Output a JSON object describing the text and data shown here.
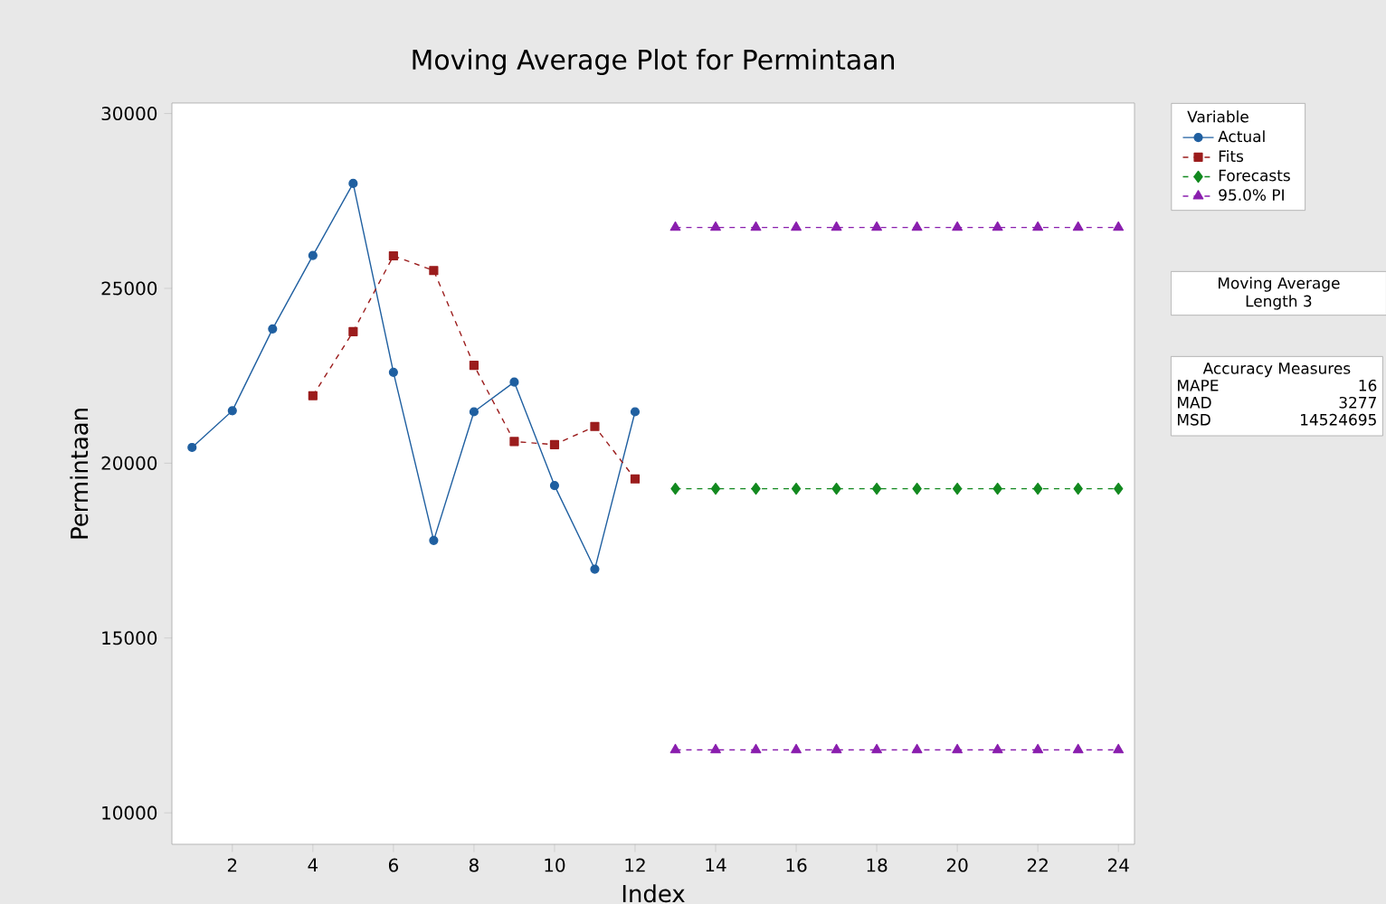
{
  "chart_data": {
    "type": "line",
    "title": "Moving Average Plot for Permintaan",
    "xlabel": "Index",
    "ylabel": "Permintaan",
    "legend_title": "Variable",
    "legend": "right",
    "grid": false,
    "xlim": [
      0.5,
      24.4
    ],
    "ylim": [
      9100,
      30300
    ],
    "xticks": [
      2,
      4,
      6,
      8,
      10,
      12,
      14,
      16,
      18,
      20,
      22,
      24
    ],
    "yticks": [
      10000,
      15000,
      20000,
      25000,
      30000
    ],
    "series": [
      {
        "name": "Actual",
        "color": "#1f5fa0",
        "marker": "circle",
        "line_style": "solid",
        "x": [
          1,
          2,
          3,
          4,
          5,
          6,
          7,
          8,
          9,
          10,
          11,
          12
        ],
        "values": [
          20450,
          21500,
          23840,
          25940,
          28000,
          22600,
          17790,
          21470,
          22320,
          19360,
          16970,
          21470
        ]
      },
      {
        "name": "Fits",
        "color": "#9b1c1c",
        "marker": "square",
        "line_style": "dashed",
        "x": [
          4,
          5,
          6,
          7,
          8,
          9,
          10,
          11,
          12
        ],
        "values": [
          21930,
          23760,
          25930,
          25510,
          22800,
          20620,
          20530,
          21050,
          19550
        ]
      },
      {
        "name": "Forecasts",
        "color": "#12891f",
        "marker": "diamond",
        "line_style": "dashed",
        "x": [
          13,
          14,
          15,
          16,
          17,
          18,
          19,
          20,
          21,
          22,
          23,
          24
        ],
        "values": [
          19270,
          19270,
          19270,
          19270,
          19270,
          19270,
          19270,
          19270,
          19270,
          19270,
          19270,
          19270
        ]
      },
      {
        "name": "95.0% PI",
        "color": "#8a1fae",
        "marker": "triangle",
        "line_style": "dashed",
        "x": [
          13,
          14,
          15,
          16,
          17,
          18,
          19,
          20,
          21,
          22,
          23,
          24
        ],
        "values": [
          26740,
          26740,
          26740,
          26740,
          26740,
          26740,
          26740,
          26740,
          26740,
          26740,
          26740,
          26740
        ]
      },
      {
        "color": "#8a1fae",
        "marker": "triangle",
        "line_style": "dashed",
        "x": [
          13,
          14,
          15,
          16,
          17,
          18,
          19,
          20,
          21,
          22,
          23,
          24
        ],
        "values": [
          11800,
          11800,
          11800,
          11800,
          11800,
          11800,
          11800,
          11800,
          11800,
          11800,
          11800,
          11800
        ]
      }
    ],
    "annotations": [
      "Moving Average",
      "Length   3",
      "Accuracy Measures",
      "MAPE",
      "16",
      "MAD",
      "3277",
      "MSD",
      "14524695"
    ]
  }
}
